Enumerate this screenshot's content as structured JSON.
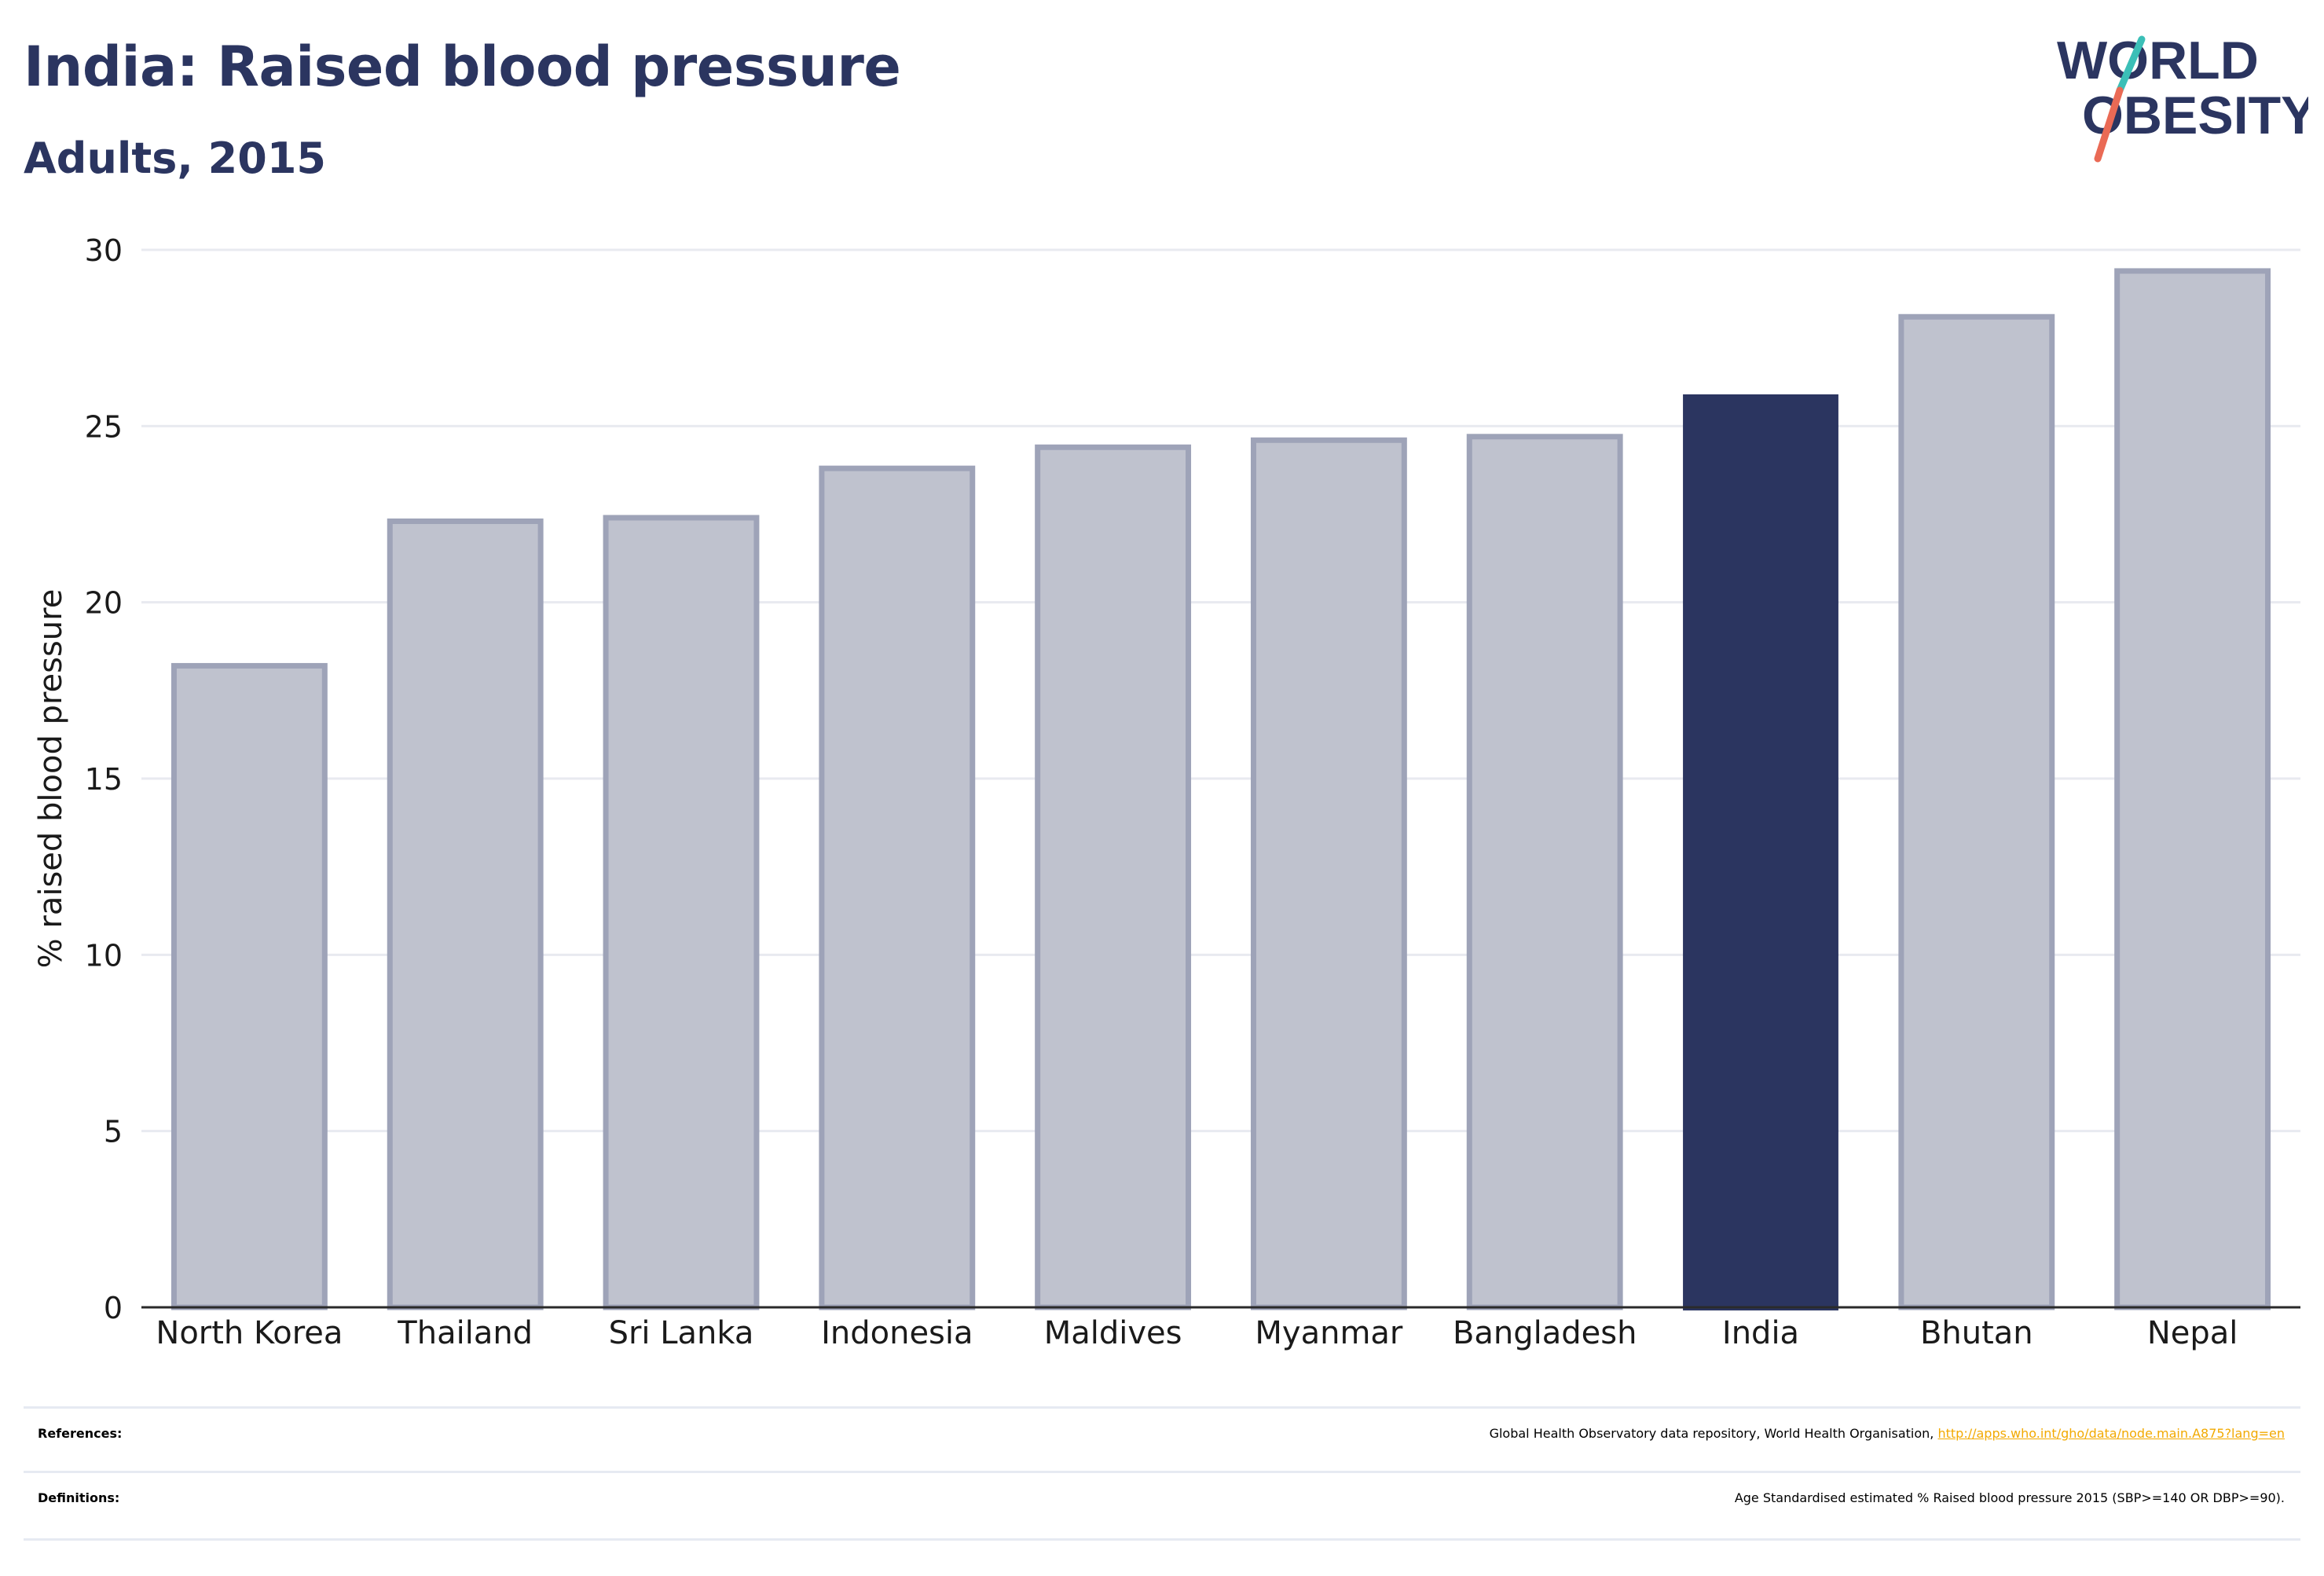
{
  "header": {
    "title": "India: Raised blood pressure",
    "subtitle": "Adults, 2015"
  },
  "logo": {
    "line1": "WORLD",
    "line2": "OBESITY",
    "text_color": "#2b3560",
    "stroke_colors": [
      "#3bbfb7",
      "#ea6a55"
    ]
  },
  "colors": {
    "highlight_bar": "#2b3560",
    "other_bar_fill": "#bfc2ce",
    "other_bar_stroke": "#9ea3b8",
    "grid": "#e8eaf0",
    "axis": "#2a2a2a",
    "link": "#f2a900"
  },
  "chart_data": {
    "type": "bar",
    "categories": [
      "North Korea",
      "Thailand",
      "Sri Lanka",
      "Indonesia",
      "Maldives",
      "Myanmar",
      "Bangladesh",
      "India",
      "Bhutan",
      "Nepal"
    ],
    "values": [
      18.2,
      22.3,
      22.4,
      23.8,
      24.4,
      24.6,
      24.7,
      25.9,
      28.1,
      29.4
    ],
    "highlight": "India",
    "title": "India: Raised blood pressure",
    "subtitle": "Adults, 2015",
    "xlabel": "",
    "ylabel": "% raised blood pressure",
    "ylim": [
      0,
      30
    ],
    "yticks": [
      0,
      5,
      10,
      15,
      20,
      25,
      30
    ],
    "grid": true,
    "legend": "none"
  },
  "footer": {
    "references_label": "References:",
    "references_text": "Global Health Observatory data repository, World Health Organisation, ",
    "references_link": "http://apps.who.int/gho/data/node.main.A875?lang=en",
    "definitions_label": "Definitions:",
    "definitions_text": "Age Standardised estimated % Raised blood pressure 2015 (SBP>=140 OR DBP>=90)."
  }
}
